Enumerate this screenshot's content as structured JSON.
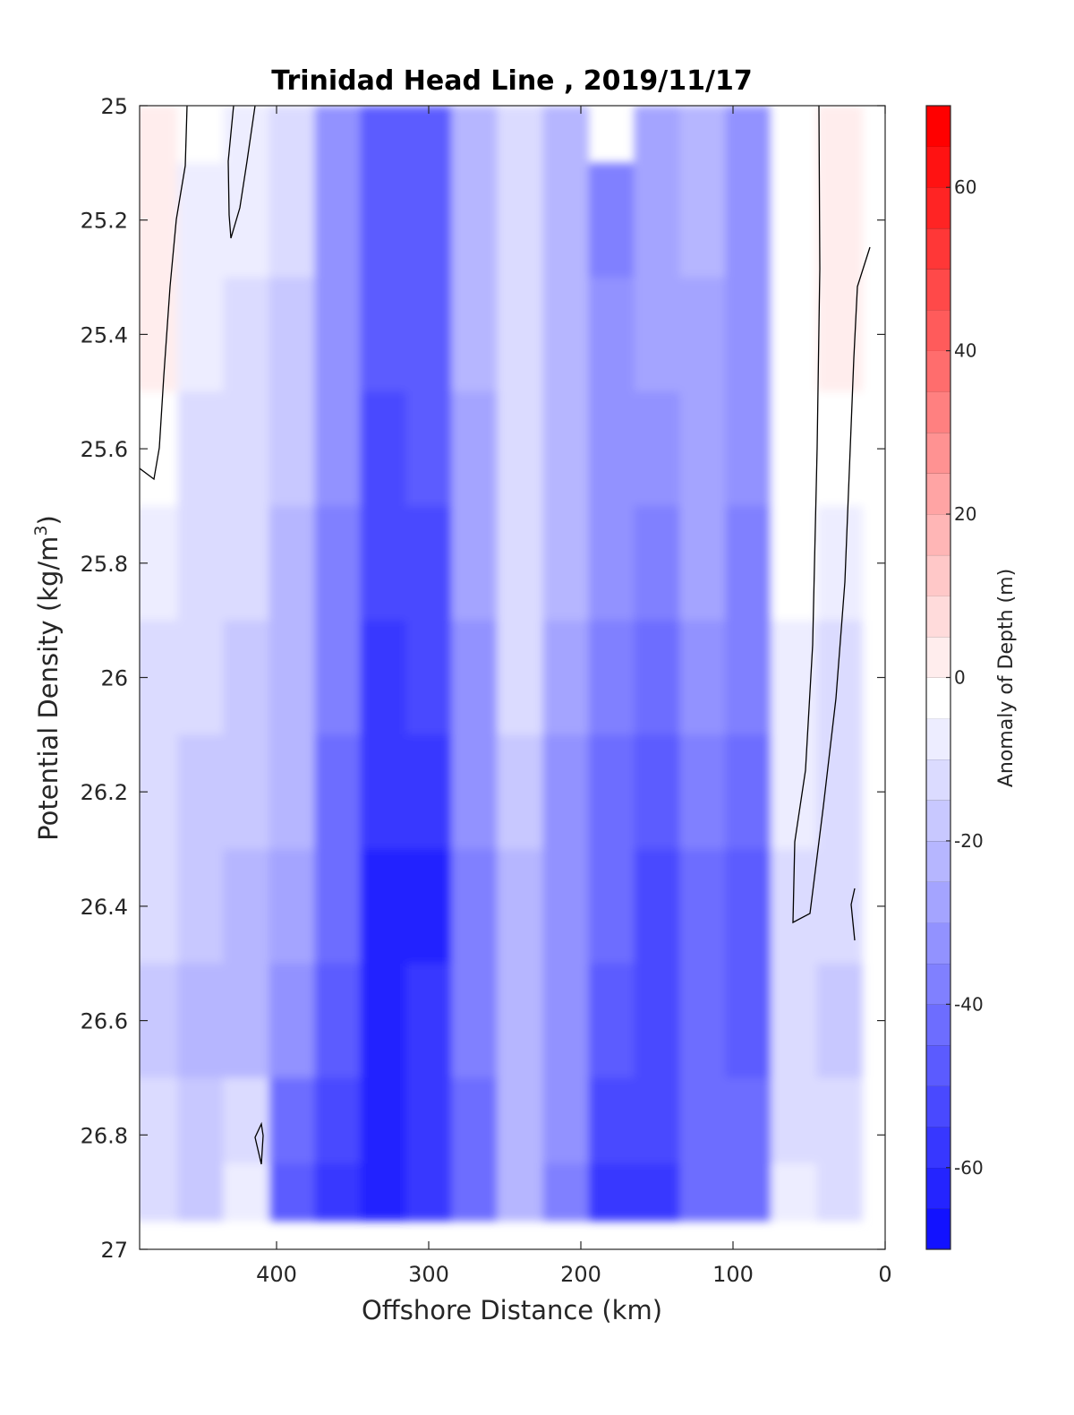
{
  "chart_data": {
    "type": "heatmap",
    "title": "Trinidad Head Line , 2019/11/17",
    "xlabel": "Offshore Distance (km)",
    "ylabel": "Potential Density (kg/m3)",
    "ylabel_parts": {
      "main": "Potential Density (kg/m",
      "sup": "3",
      "end": ")"
    },
    "xlim": [
      490,
      0
    ],
    "x_reversed": true,
    "ylim": [
      25,
      27
    ],
    "y_reversed": true,
    "xticks": [
      400,
      300,
      200,
      100,
      0
    ],
    "yticks": [
      25,
      25.2,
      25.4,
      25.6,
      25.8,
      26,
      26.2,
      26.4,
      26.6,
      26.8,
      27
    ],
    "colorbar": {
      "label": "Anomaly of Depth (m)",
      "range": [
        -70,
        70
      ],
      "ticks": [
        60,
        40,
        20,
        0,
        -20,
        -40,
        -60
      ],
      "step": 5,
      "colormap": "blue-white-red",
      "min_color": "#0000ff",
      "zero_color": "#ffffff",
      "max_color": "#ff0000"
    },
    "grid": false,
    "zero_contour": true,
    "x": [
      480,
      450,
      420,
      390,
      360,
      330,
      300,
      270,
      240,
      210,
      180,
      150,
      120,
      90,
      60,
      30
    ],
    "y": [
      25.0,
      25.2,
      25.4,
      25.6,
      25.8,
      26.0,
      26.2,
      26.4,
      26.6,
      26.8,
      26.9
    ],
    "z": [
      [
        5,
        -2,
        -3,
        -12,
        -28,
        -45,
        -45,
        -20,
        -10,
        -18,
        null,
        -25,
        -22,
        -30,
        0,
        5
      ],
      [
        5,
        -3,
        -5,
        -12,
        -28,
        -45,
        -45,
        -20,
        -12,
        -20,
        -35,
        -25,
        -22,
        -30,
        0,
        5
      ],
      [
        3,
        -5,
        -8,
        -14,
        -30,
        -45,
        -44,
        -22,
        -12,
        -22,
        -30,
        -26,
        -24,
        -30,
        0,
        3
      ],
      [
        -2,
        -8,
        -10,
        -16,
        -32,
        -48,
        -46,
        -24,
        -10,
        -20,
        -28,
        -30,
        -25,
        -32,
        0,
        2
      ],
      [
        -5,
        -10,
        -12,
        -18,
        -34,
        -50,
        -50,
        -26,
        -8,
        -20,
        -30,
        -35,
        -25,
        -34,
        -2,
        -5
      ],
      [
        -8,
        -12,
        -14,
        -20,
        -36,
        -54,
        -52,
        -28,
        -10,
        -24,
        -34,
        -40,
        -28,
        -36,
        -4,
        -8
      ],
      [
        -10,
        -14,
        -16,
        -22,
        -38,
        -56,
        -55,
        -30,
        -14,
        -28,
        -38,
        -44,
        -34,
        -42,
        -6,
        -10
      ],
      [
        -12,
        -16,
        -18,
        -26,
        -40,
        -58,
        -58,
        -34,
        -18,
        -30,
        -42,
        -48,
        -40,
        -45,
        -8,
        -12
      ],
      [
        -14,
        -18,
        -20,
        -30,
        -44,
        -58,
        -55,
        -36,
        -20,
        -32,
        -44,
        -48,
        -40,
        -45,
        -12,
        -15
      ],
      [
        -12,
        -16,
        -8,
        -40,
        -50,
        -58,
        -55,
        -40,
        -20,
        -30,
        -50,
        -50,
        -40,
        -40,
        -8,
        -10
      ],
      [
        -10,
        -14,
        -6,
        -45,
        -55,
        -60,
        -56,
        -42,
        -22,
        -34,
        -55,
        -55,
        -42,
        -40,
        -6,
        -8
      ]
    ]
  }
}
